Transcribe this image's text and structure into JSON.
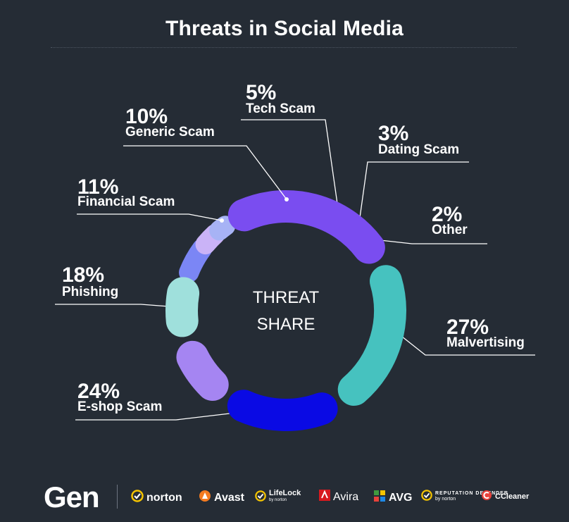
{
  "title": "Threats in Social Media",
  "center_label": [
    "THREAT",
    "SHARE"
  ],
  "chart_data": {
    "type": "pie",
    "variant": "donut",
    "title": "Threats in Social Media",
    "center_text": "THREAT SHARE",
    "categories": [
      "Tech Scam",
      "Dating Scam",
      "Other",
      "Malvertising",
      "E-shop Scam",
      "Phishing",
      "Financial Scam",
      "Generic Scam"
    ],
    "values": [
      5,
      3,
      2,
      27,
      24,
      18,
      11,
      10
    ],
    "value_labels": [
      "5%",
      "3%",
      "2%",
      "27%",
      "24%",
      "18%",
      "11%",
      "10%"
    ],
    "unit": "%",
    "colors": [
      "#7b86f5",
      "#cab3f7",
      "#a7b3f5",
      "#7a4df0",
      "#46c2bf",
      "#0a0ae4",
      "#a585f2",
      "#9fe0dc"
    ]
  },
  "footer": {
    "logo": "Gen",
    "brands": [
      {
        "name": "norton",
        "icon": "norton-check-icon",
        "color": "#f5c400"
      },
      {
        "name": "Avast",
        "icon": "avast-icon",
        "color": "#f47b20"
      },
      {
        "name": "LifeLock",
        "sub": "by norton",
        "icon": "lifelock-check-icon",
        "color": "#f5c400"
      },
      {
        "name": "Avira",
        "icon": "avira-icon",
        "color": "#d7191e"
      },
      {
        "name": "AVG",
        "icon": "avg-icon",
        "color": "#3f9b3f"
      },
      {
        "name": "REPUTATION DEFENDER",
        "sub": "by norton",
        "icon": "reputation-check-icon",
        "color": "#f5c400"
      },
      {
        "name": "CCleaner",
        "icon": "ccleaner-icon",
        "color": "#e8423b"
      }
    ]
  }
}
